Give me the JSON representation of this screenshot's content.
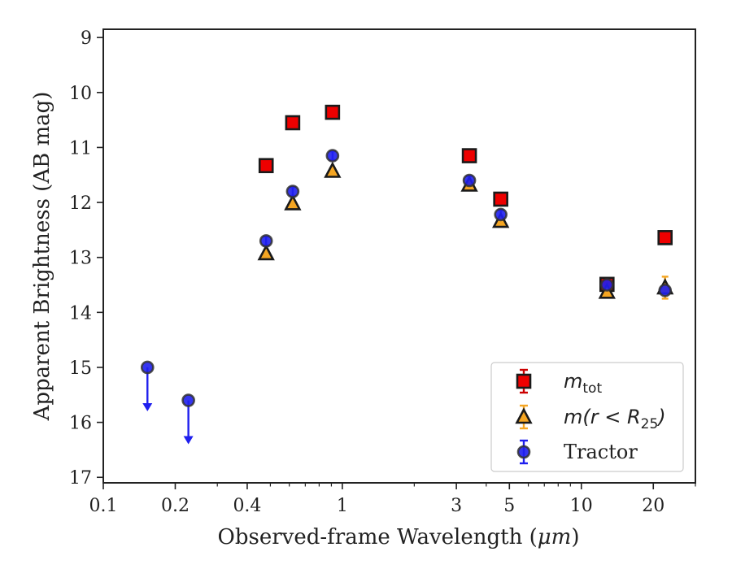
{
  "chart_data": {
    "type": "scatter",
    "xlabel": "Observed-frame Wavelength (",
    "xlabel_unit": "μm",
    "xlabel_end": ")",
    "ylabel": "Apparent Brightness (AB mag)",
    "xscale": "log",
    "xlim": [
      0.1,
      30
    ],
    "ylim": [
      17.1,
      8.85
    ],
    "y_inverted": true,
    "x_ticks": [
      {
        "value": 0.1,
        "label": "0.1"
      },
      {
        "value": 0.2,
        "label": "0.2"
      },
      {
        "value": 0.4,
        "label": "0.4"
      },
      {
        "value": 1,
        "label": "1"
      },
      {
        "value": 3,
        "label": "3"
      },
      {
        "value": 5,
        "label": "5"
      },
      {
        "value": 10,
        "label": "10"
      },
      {
        "value": 20,
        "label": "20"
      }
    ],
    "x_minor_ticks": [
      0.3,
      0.5,
      0.6,
      0.7,
      0.8,
      0.9,
      2,
      4,
      6,
      7,
      8,
      9,
      30
    ],
    "y_ticks": [
      {
        "value": 9,
        "label": "9"
      },
      {
        "value": 10,
        "label": "10"
      },
      {
        "value": 11,
        "label": "11"
      },
      {
        "value": 12,
        "label": "12"
      },
      {
        "value": 13,
        "label": "13"
      },
      {
        "value": 14,
        "label": "14"
      },
      {
        "value": 15,
        "label": "15"
      },
      {
        "value": 16,
        "label": "16"
      },
      {
        "value": 17,
        "label": "17"
      }
    ],
    "legend_position": "lower-right",
    "series": [
      {
        "name": "m_tot",
        "legend_base": "m",
        "legend_sub": "tot",
        "marker": "square",
        "fill": "#ee0000",
        "edge": "#1a1a1a",
        "errcolor": "#cc0000",
        "points": [
          {
            "x": 0.48,
            "y": 11.33,
            "err": 0.05
          },
          {
            "x": 0.62,
            "y": 10.55,
            "err": 0.05
          },
          {
            "x": 0.91,
            "y": 10.36,
            "err": 0.05
          },
          {
            "x": 3.4,
            "y": 11.15,
            "err": 0.05
          },
          {
            "x": 4.6,
            "y": 11.94,
            "err": 0.05
          },
          {
            "x": 12.8,
            "y": 13.49,
            "err": 0.05
          },
          {
            "x": 22.4,
            "y": 12.64,
            "err": 0.05
          }
        ]
      },
      {
        "name": "m(r < R_25)",
        "legend_base": "m(r < R",
        "legend_sub": "25",
        "legend_end": ")",
        "marker": "triangle",
        "fill": "#f5a623",
        "edge": "#1a1a1a",
        "errcolor": "#f5a623",
        "points": [
          {
            "x": 0.48,
            "y": 12.93,
            "err": 0.05
          },
          {
            "x": 0.62,
            "y": 12.02,
            "err": 0.05
          },
          {
            "x": 0.91,
            "y": 11.43,
            "err": 0.05
          },
          {
            "x": 3.4,
            "y": 11.68,
            "err": 0.05
          },
          {
            "x": 4.6,
            "y": 12.34,
            "err": 0.05
          },
          {
            "x": 12.8,
            "y": 13.63,
            "err": 0.05
          },
          {
            "x": 22.4,
            "y": 13.55,
            "err": 0.2
          }
        ]
      },
      {
        "name": "Tractor",
        "legend_base": "Tractor",
        "marker": "circle",
        "fill": "#1f1fee",
        "edge": "#333333",
        "errcolor": "#1f1fee",
        "points": [
          {
            "x": 0.153,
            "y": 15.0,
            "upper_limit": true
          },
          {
            "x": 0.227,
            "y": 15.6,
            "upper_limit": true
          },
          {
            "x": 0.48,
            "y": 12.7,
            "err": 0.08
          },
          {
            "x": 0.62,
            "y": 11.8,
            "err": 0.08
          },
          {
            "x": 0.91,
            "y": 11.15,
            "err": 0.08
          },
          {
            "x": 3.4,
            "y": 11.6,
            "err": 0.08
          },
          {
            "x": 4.6,
            "y": 12.22,
            "err": 0.08
          },
          {
            "x": 12.8,
            "y": 13.5,
            "err": 0.05
          },
          {
            "x": 22.4,
            "y": 13.6,
            "err": 0.05
          }
        ]
      }
    ]
  }
}
